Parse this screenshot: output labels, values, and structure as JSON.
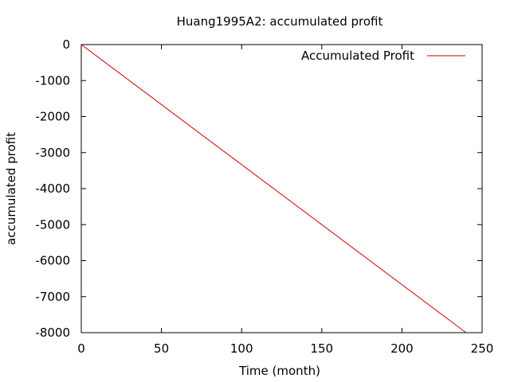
{
  "chart_data": {
    "type": "line",
    "title": "Huang1995A2: accumulated profit",
    "xlabel": "Time (month)",
    "ylabel": "accumulated profit",
    "xlim": [
      0,
      250
    ],
    "ylim": [
      -8000,
      0
    ],
    "xticks": [
      0,
      50,
      100,
      150,
      200,
      250
    ],
    "yticks": [
      0,
      -1000,
      -2000,
      -3000,
      -4000,
      -5000,
      -6000,
      -7000,
      -8000
    ],
    "grid": false,
    "legend_position": "top-right",
    "series": [
      {
        "name": "Accumulated Profit",
        "color": "#cc0000",
        "x": [
          0,
          240
        ],
        "y": [
          0,
          -8000
        ]
      }
    ]
  }
}
